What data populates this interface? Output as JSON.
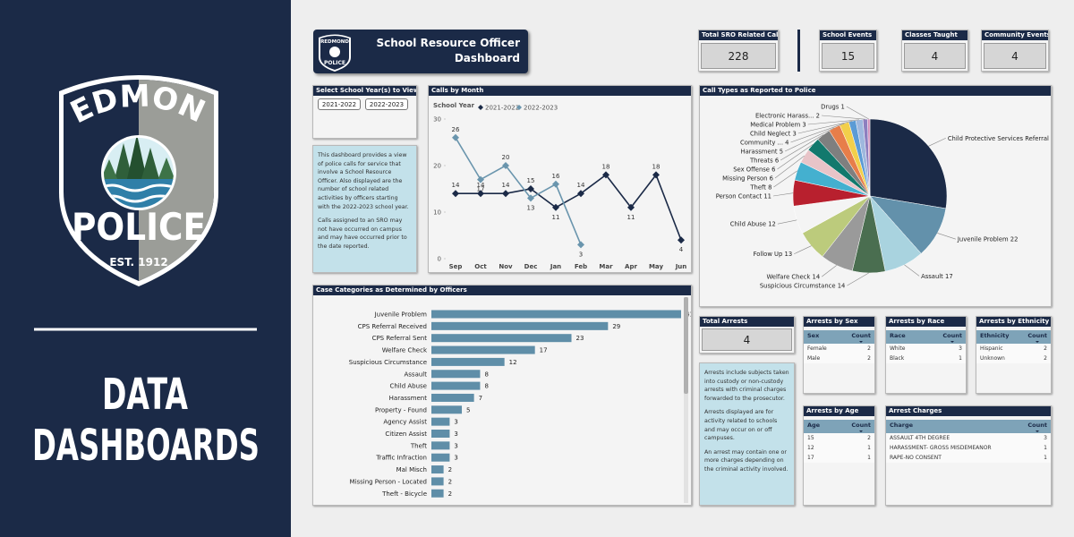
{
  "sidebar": {
    "logo_top": "REDMOND",
    "logo_bottom": "POLICE",
    "established": "EST. 1912",
    "heading": [
      "DATA",
      "DASHBOARDS"
    ]
  },
  "header": {
    "logo_top": "REDMOND",
    "logo_bottom": "POLICE",
    "title": [
      "School Resource Officer",
      "Dashboard"
    ]
  },
  "kpis": [
    {
      "label": "Total SRO Related Calls",
      "value": 228
    },
    {
      "label": "School Events",
      "value": 15
    },
    {
      "label": "Classes Taught",
      "value": 4
    },
    {
      "label": "Community Events",
      "value": 4
    }
  ],
  "year_filter": {
    "title": "Select School Year(s) to View",
    "options": [
      "2021-2022",
      "2022-2023"
    ]
  },
  "description": [
    "This dashboard provides a view of police calls for service that involve a School Resource Officer. Also displayed are the number of school related activities by officers starting with the 2022-2023 school year.",
    "Calls assigned to an SRO may not have occurred on campus and may have occurred prior to the date reported."
  ],
  "chart_data": [
    {
      "type": "line",
      "title": "Calls by Month",
      "legend_title": "School Year",
      "categories": [
        "Sep",
        "Oct",
        "Nov",
        "Dec",
        "Jan",
        "Feb",
        "Mar",
        "Apr",
        "May",
        "Jun"
      ],
      "series": [
        {
          "name": "2021-2022",
          "color": "#1b2a47",
          "values": [
            14,
            14,
            14,
            15,
            11,
            14,
            18,
            11,
            18,
            4
          ]
        },
        {
          "name": "2022-2023",
          "color": "#6a95ad",
          "values": [
            26,
            17,
            20,
            13,
            16,
            3,
            null,
            null,
            null,
            null
          ]
        }
      ],
      "ylim": [
        0,
        30
      ],
      "yticks": [
        0,
        10,
        20,
        30
      ]
    },
    {
      "type": "pie",
      "title": "Call Types as Reported to Police",
      "categories": [
        "Child Protective Services Referral",
        "Juvenile Problem",
        "Assault",
        "Suspicious Circumstance",
        "Welfare Check",
        "Follow Up",
        "Child Abuse",
        "Person Contact",
        "Theft",
        "Missing Person",
        "Sex Offense",
        "Threats",
        "Harassment",
        "Community ...",
        "Child Neglect",
        "Medical Problem",
        "Electronic Harass...",
        "Drugs"
      ],
      "values": [
        56,
        22,
        17,
        14,
        14,
        13,
        12,
        11,
        8,
        6,
        6,
        6,
        5,
        4,
        3,
        3,
        2,
        1
      ],
      "colors": [
        "#1b2a47",
        "#6391ab",
        "#a9d3df",
        "#4a6e50",
        "#9a9a9a",
        "#bccb7c",
        "#f4f4f4",
        "#b8202e",
        "#44b0cf",
        "#e8c4c8",
        "#12796d",
        "#7f7f7f",
        "#e77e4a",
        "#f2cf4a",
        "#5b9bd5",
        "#9fb8de",
        "#8d7fbf",
        "#d38dbb"
      ]
    },
    {
      "type": "bar",
      "orientation": "horizontal",
      "title": "Case Categories as Determined by Officers",
      "categories": [
        "Juvenile Problem",
        "CPS Referral Received",
        "CPS Referral Sent",
        "Welfare Check",
        "Suspicious Circumstance",
        "Assault",
        "Child Abuse",
        "Harassment",
        "Property - Found",
        "Agency Assist",
        "Citizen Assist",
        "Theft",
        "Traffic Infraction",
        "Mal Misch",
        "Missing Person - Located",
        "Theft - Bicycle"
      ],
      "values": [
        41,
        29,
        23,
        17,
        12,
        8,
        8,
        7,
        5,
        3,
        3,
        3,
        3,
        2,
        2,
        2
      ],
      "color": "#5f8ea8"
    }
  ],
  "arrests": {
    "total": {
      "label": "Total Arrests",
      "value": 4
    },
    "note": [
      "Arrests include subjects taken into custody or non-custody arrests with criminal charges forwarded to the prosecutor.",
      "Arrests displayed are for activity related to schools and may occur on or off campuses.",
      "An arrest may contain one or more charges depending on the criminal activity involved."
    ],
    "tables": [
      {
        "title": "Arrests by Sex",
        "columns": [
          "Sex",
          "Count"
        ],
        "rows": [
          [
            "Female",
            2
          ],
          [
            "Male",
            2
          ]
        ]
      },
      {
        "title": "Arrests by Race",
        "columns": [
          "Race",
          "Count"
        ],
        "rows": [
          [
            "White",
            3
          ],
          [
            "Black",
            1
          ]
        ]
      },
      {
        "title": "Arrests by Ethnicity",
        "columns": [
          "Ethnicity",
          "Count"
        ],
        "rows": [
          [
            "Hispanic",
            2
          ],
          [
            "Unknown",
            2
          ]
        ]
      },
      {
        "title": "Arrests by Age",
        "columns": [
          "Age",
          "Count"
        ],
        "rows": [
          [
            "15",
            2
          ],
          [
            "12",
            1
          ],
          [
            "17",
            1
          ]
        ]
      },
      {
        "title": "Arrest Charges",
        "columns": [
          "Charge",
          "Count"
        ],
        "rows": [
          [
            "ASSAULT 4TH DEGREE",
            3
          ],
          [
            "HARASSMENT- GROSS MISDEMEANOR",
            1
          ],
          [
            "RAPE-NO CONSENT",
            1
          ]
        ]
      }
    ]
  }
}
